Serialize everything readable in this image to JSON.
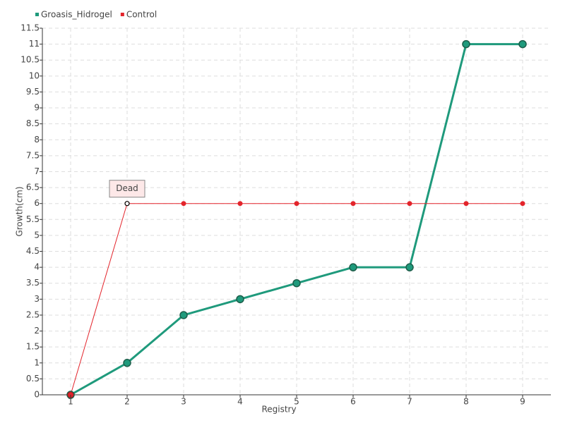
{
  "chart_data": {
    "type": "line",
    "x_label": "Registry",
    "y_label": "Growth(cm)",
    "categories": [
      "1",
      "2",
      "3",
      "4",
      "5",
      "6",
      "7",
      "8",
      "9"
    ],
    "series": [
      {
        "name": "Groasis_Hidrogel",
        "color": "#1f9a7c",
        "values": [
          0,
          1,
          2.5,
          3,
          3.5,
          4,
          4,
          11,
          11
        ]
      },
      {
        "name": "Control",
        "color": "#e3242b",
        "values": [
          0,
          6,
          6,
          6,
          6,
          6,
          6,
          6,
          6
        ]
      }
    ],
    "annotations": [
      {
        "text": "Dead",
        "x": "2",
        "y": 6
      }
    ],
    "ylim": [
      0,
      11.5
    ],
    "yticks": [
      0,
      0.5,
      1,
      1.5,
      2,
      2.5,
      3,
      3.5,
      4,
      4.5,
      5,
      5.5,
      6,
      6.5,
      7,
      7.5,
      8,
      8.5,
      9,
      9.5,
      10,
      10.5,
      11,
      11.5
    ],
    "grid": true,
    "legend": "top-left"
  }
}
